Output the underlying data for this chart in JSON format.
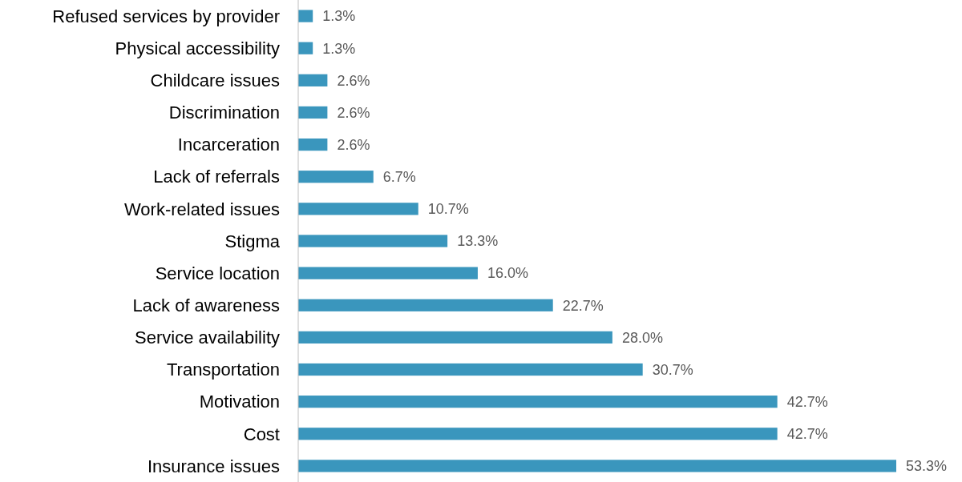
{
  "chart_data": {
    "type": "bar",
    "orientation": "horizontal",
    "data_labels": true,
    "color": "#3a96bd",
    "categories": [
      "Refused services by provider",
      "Physical accessibility",
      "Childcare issues",
      "Discrimination",
      "Incarceration",
      "Lack of referrals",
      "Work-related issues",
      "Stigma",
      "Service location",
      "Lack of awareness",
      "Service availability",
      "Transportation",
      "Motivation",
      "Cost",
      "Insurance issues"
    ],
    "values": [
      1.3,
      1.3,
      2.6,
      2.6,
      2.6,
      6.7,
      10.7,
      13.3,
      16.0,
      22.7,
      28.0,
      30.7,
      42.7,
      42.7,
      53.3
    ],
    "value_labels": [
      "1.3%",
      "1.3%",
      "2.6%",
      "2.6%",
      "2.6%",
      "6.7%",
      "10.7%",
      "13.3%",
      "16.0%",
      "22.7%",
      "28.0%",
      "30.7%",
      "42.7%",
      "42.7%",
      "53.3%"
    ]
  }
}
